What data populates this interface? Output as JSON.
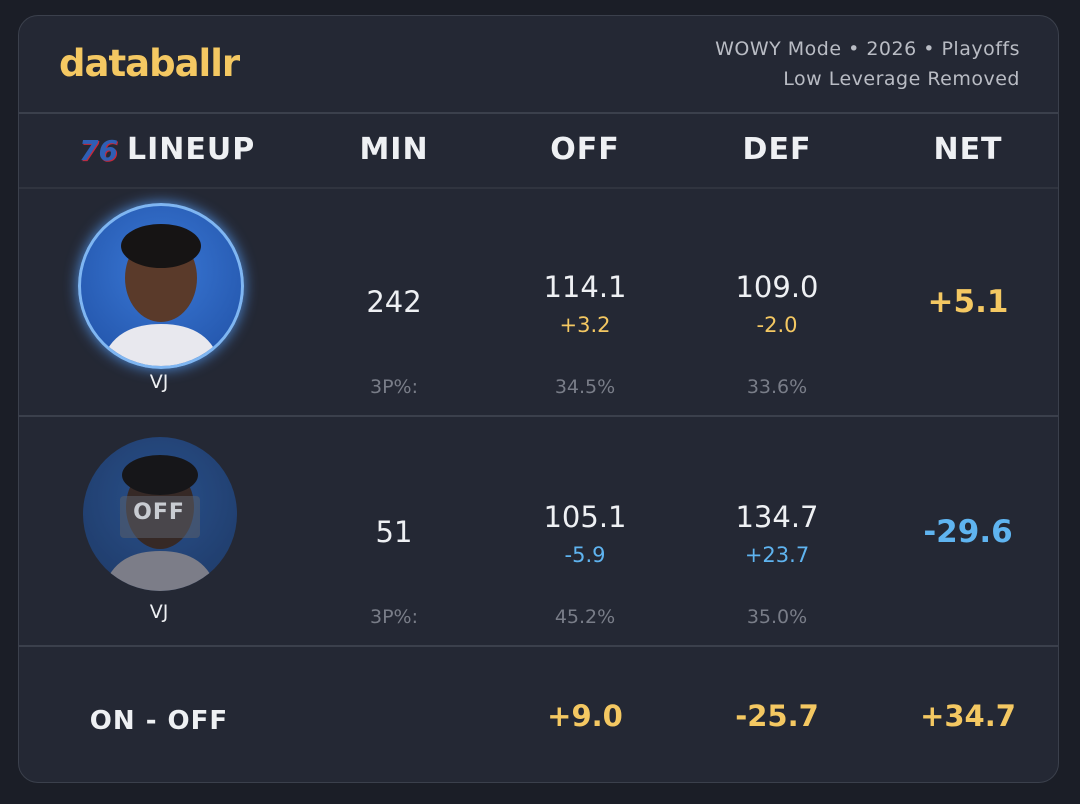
{
  "header": {
    "brand": "databallr",
    "subtitle": [
      "WOWY Mode • 2026 • Playoffs",
      "Low Leverage Removed"
    ]
  },
  "table": {
    "team_logo": "76",
    "columns": [
      "LINEUP",
      "MIN",
      "OFF",
      "DEF",
      "NET"
    ],
    "rows": [
      {
        "player": "VJ",
        "min": "242",
        "off": "114.1",
        "off_diff": "+3.2",
        "def": "109.0",
        "def_diff": "-2.0",
        "net": "+5.1",
        "three_label": "3P%:",
        "off_3p": "34.5%",
        "def_3p": "33.6%"
      },
      {
        "player": "VJ",
        "badge": "OFF",
        "min": "51",
        "off": "105.1",
        "off_diff": "-5.9",
        "def": "134.7",
        "def_diff": "+23.7",
        "net": "-29.6",
        "three_label": "3P%:",
        "off_3p": "45.2%",
        "def_3p": "35.0%"
      }
    ],
    "summary": {
      "label": "ON - OFF",
      "off": "+9.0",
      "def": "-25.7",
      "net": "+34.7"
    }
  }
}
